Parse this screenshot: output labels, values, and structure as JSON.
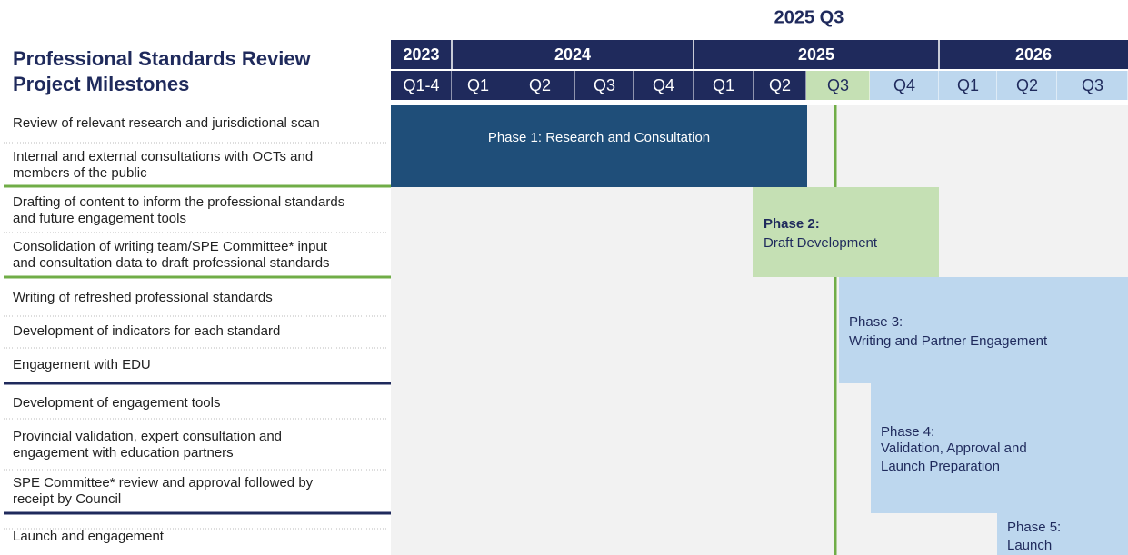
{
  "current_label": "2025 Q3",
  "title": [
    "Professional Standards Review",
    "Project Milestones"
  ],
  "years": [
    "2023",
    "2024",
    "2025",
    "2026"
  ],
  "quarters": [
    "Q1-4",
    "Q1",
    "Q2",
    "Q3",
    "Q4",
    "Q1",
    "Q2",
    "Q3",
    "Q4",
    "Q1",
    "Q2",
    "Q3"
  ],
  "tasks": [
    [
      "Review of relevant research and jurisdictional scan"
    ],
    [
      "Internal and external consultations with OCTs and",
      "members of the public"
    ],
    [
      "Drafting of content to inform the professional standards",
      "and future engagement tools"
    ],
    [
      "Consolidation of writing team/SPE Committee* input",
      "and consultation data to draft professional standards"
    ],
    [
      "Writing of refreshed professional standards"
    ],
    [
      "Development of indicators for each standard"
    ],
    [
      "Engagement with EDU"
    ],
    [
      "Development of engagement tools"
    ],
    [
      "Provincial validation, expert consultation and",
      "engagement with education partners"
    ],
    [
      "SPE Committee* review and approval followed by",
      "receipt by Council"
    ],
    [
      "Launch and engagement"
    ]
  ],
  "phases": [
    {
      "lines": [
        "Phase 1: Research and Consultation"
      ]
    },
    {
      "lines": [
        "Phase 2:",
        "Draft Development"
      ]
    },
    {
      "lines": [
        "Phase 3:",
        "Writing and Partner Engagement"
      ]
    },
    {
      "lines": [
        "Phase 4:",
        "Validation, Approval and",
        "Launch Preparation"
      ]
    },
    {
      "lines": [
        "Phase 5:",
        "Launch"
      ]
    }
  ]
}
